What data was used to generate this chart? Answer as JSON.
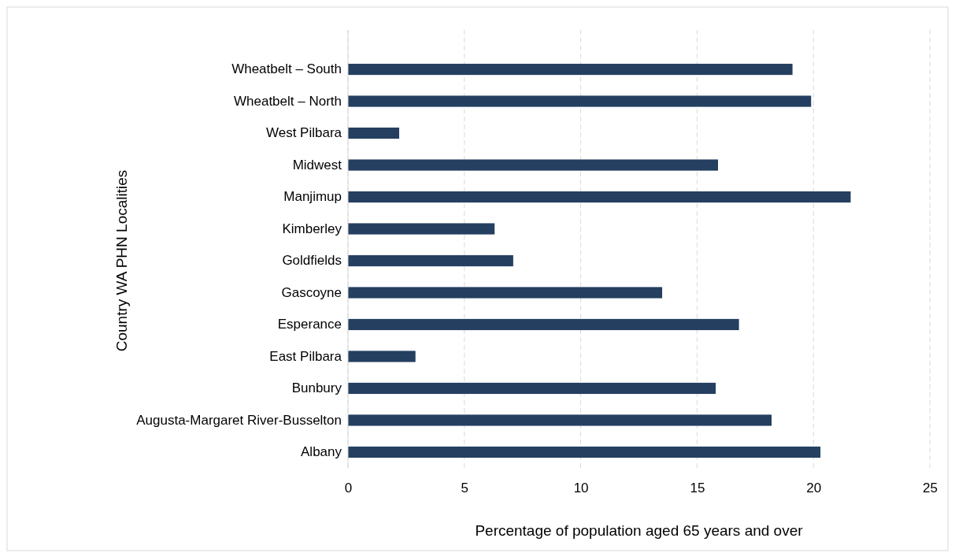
{
  "chart_data": {
    "type": "bar",
    "orientation": "horizontal",
    "xlabel": "Percentage of population aged 65 years and over",
    "ylabel": "Country WA PHN Localities",
    "categories": [
      "Wheatbelt – South",
      "Wheatbelt – North",
      "West Pilbara",
      "Midwest",
      "Manjimup",
      "Kimberley",
      "Goldfields",
      "Gascoyne",
      "Esperance",
      "East Pilbara",
      "Bunbury",
      "Augusta-Margaret River-Busselton",
      "Albany"
    ],
    "values": [
      19.1,
      19.9,
      2.2,
      15.9,
      21.6,
      6.3,
      7.1,
      13.5,
      16.8,
      2.9,
      15.8,
      18.2,
      20.3
    ],
    "color": "#243f60",
    "xlim": [
      0,
      25
    ],
    "xticks": [
      0,
      5,
      10,
      15,
      20,
      25
    ],
    "grid": "x"
  }
}
